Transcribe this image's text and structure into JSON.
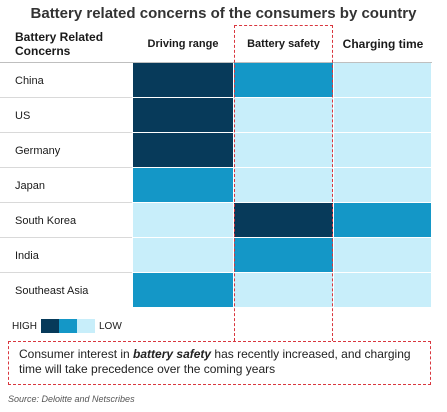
{
  "chart_data": {
    "type": "heatmap",
    "title": "Battery related concerns of the consumers by country",
    "row_header": "Battery Related Concerns",
    "columns": [
      "Driving range",
      "Battery safety",
      "Charging time"
    ],
    "rows": [
      "China",
      "US",
      "Germany",
      "Japan",
      "South Korea",
      "India",
      "Southeast Asia"
    ],
    "values": [
      [
        "high",
        "medium",
        "low"
      ],
      [
        "high",
        "low",
        "low"
      ],
      [
        "high",
        "low",
        "low"
      ],
      [
        "medium",
        "low",
        "low"
      ],
      [
        "low",
        "high",
        "medium"
      ],
      [
        "low",
        "medium",
        "low"
      ],
      [
        "medium",
        "low",
        "low"
      ]
    ],
    "scale": {
      "high": "#073a5a",
      "medium": "#1497c7",
      "low": "#c8eefa"
    },
    "highlighted_column": "Battery safety",
    "legend": {
      "high_label": "HIGH",
      "low_label": "LOW"
    }
  },
  "note": {
    "text_before": "Consumer interest in ",
    "emphasis": "battery safety",
    "text_after": " has recently increased, and charging time will take precedence over the coming years"
  },
  "source": "Source: Deloitte and Netscribes"
}
